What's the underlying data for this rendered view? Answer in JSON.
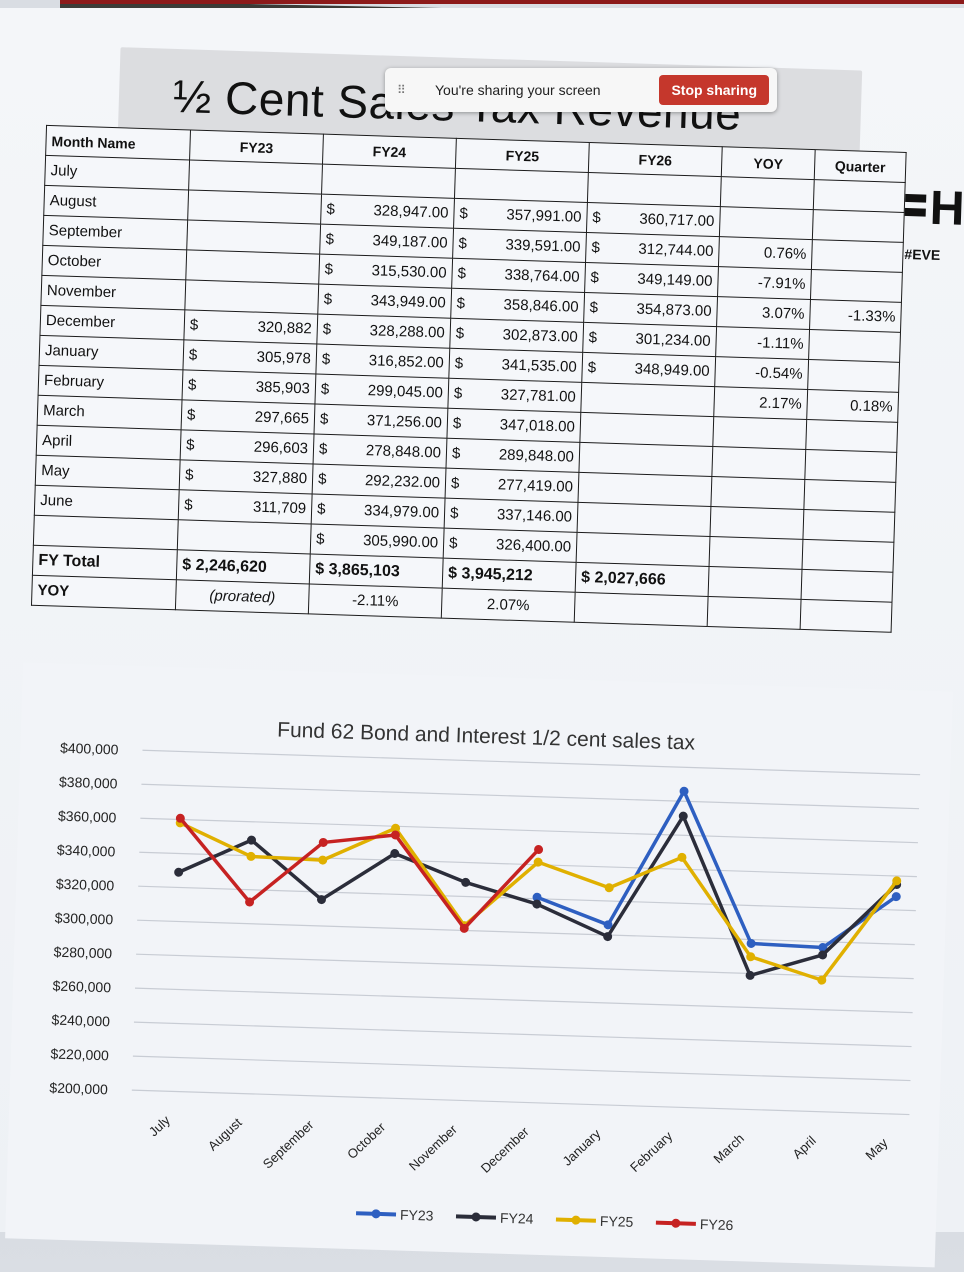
{
  "share_bar": {
    "message": "You're sharing your screen",
    "stop_label": "Stop sharing"
  },
  "slide": {
    "title": "½ Cent Sales Tax Revenue",
    "logo_letter": "H",
    "hashtag": "#EVE"
  },
  "table": {
    "headers": [
      "Month Name",
      "FY23",
      "FY24",
      "FY25",
      "FY26",
      "YOY",
      "Quarter"
    ],
    "rows": [
      {
        "month": "July",
        "fy23": "",
        "fy24": "",
        "fy25": "",
        "fy26": "",
        "yoy": "",
        "q": ""
      },
      {
        "month": "August",
        "fy23": "",
        "fy24": "328,947.00",
        "fy25": "357,991.00",
        "fy26": "360,717.00",
        "yoy": "",
        "q": ""
      },
      {
        "month": "September",
        "fy23": "",
        "fy24": "349,187.00",
        "fy25": "339,591.00",
        "fy26": "312,744.00",
        "yoy": "0.76%",
        "q": ""
      },
      {
        "month": "October",
        "fy23": "",
        "fy24": "315,530.00",
        "fy25": "338,764.00",
        "fy26": "349,149.00",
        "yoy": "-7.91%",
        "q": ""
      },
      {
        "month": "November",
        "fy23": "",
        "fy24": "343,949.00",
        "fy25": "358,846.00",
        "fy26": "354,873.00",
        "yoy": "3.07%",
        "q": "-1.33%"
      },
      {
        "month": "December",
        "fy23": "320,882",
        "fy24": "328,288.00",
        "fy25": "302,873.00",
        "fy26": "301,234.00",
        "yoy": "-1.11%",
        "q": ""
      },
      {
        "month": "January",
        "fy23": "305,978",
        "fy24": "316,852.00",
        "fy25": "341,535.00",
        "fy26": "348,949.00",
        "yoy": "-0.54%",
        "q": ""
      },
      {
        "month": "February",
        "fy23": "385,903",
        "fy24": "299,045.00",
        "fy25": "327,781.00",
        "fy26": "",
        "yoy": "2.17%",
        "q": "0.18%"
      },
      {
        "month": "March",
        "fy23": "297,665",
        "fy24": "371,256.00",
        "fy25": "347,018.00",
        "fy26": "",
        "yoy": "",
        "q": ""
      },
      {
        "month": "April",
        "fy23": "296,603",
        "fy24": "278,848.00",
        "fy25": "289,848.00",
        "fy26": "",
        "yoy": "",
        "q": ""
      },
      {
        "month": "May",
        "fy23": "327,880",
        "fy24": "292,232.00",
        "fy25": "277,419.00",
        "fy26": "",
        "yoy": "",
        "q": ""
      },
      {
        "month": "June",
        "fy23": "311,709",
        "fy24": "334,979.00",
        "fy25": "337,146.00",
        "fy26": "",
        "yoy": "",
        "q": ""
      },
      {
        "month": "",
        "fy23": "",
        "fy24": "305,990.00",
        "fy25": "326,400.00",
        "fy26": "",
        "yoy": "",
        "q": ""
      }
    ],
    "total": {
      "label": "FY Total",
      "fy23": "2,246,620",
      "fy24": "3,865,103",
      "fy25": "3,945,212",
      "fy26": "2,027,666"
    },
    "yoy_row": {
      "label": "YOY",
      "fy23": "(prorated)",
      "fy24": "-2.11%",
      "fy25": "2.07%"
    },
    "currency_symbol": "$"
  },
  "chart_data": {
    "type": "line",
    "title": "Fund 62 Bond and Interest 1/2 cent sales tax",
    "categories": [
      "July",
      "August",
      "September",
      "October",
      "November",
      "December",
      "January",
      "February",
      "March",
      "April",
      "May"
    ],
    "ylim": [
      200000,
      400000
    ],
    "yticks": [
      "$200,000",
      "$220,000",
      "$240,000",
      "$260,000",
      "$280,000",
      "$300,000",
      "$320,000",
      "$340,000",
      "$360,000",
      "$380,000",
      "$400,000"
    ],
    "ytick_values": [
      200000,
      220000,
      240000,
      260000,
      280000,
      300000,
      320000,
      340000,
      360000,
      380000,
      400000
    ],
    "grid": true,
    "legend_position": "bottom",
    "series": [
      {
        "name": "FY23",
        "color": "#2e5fc1",
        "values": [
          null,
          null,
          null,
          null,
          null,
          320882,
          305978,
          385903,
          297665,
          296603,
          327880
        ]
      },
      {
        "name": "FY24",
        "color": "#2b2d3a",
        "values": [
          328947,
          349187,
          315530,
          343949,
          328288,
          316852,
          299045,
          371256,
          278848,
          292232,
          334979
        ]
      },
      {
        "name": "FY25",
        "color": "#e0b000",
        "values": [
          357991,
          339591,
          338764,
          358846,
          302873,
          341535,
          327781,
          347018,
          289848,
          277419,
          337146
        ]
      },
      {
        "name": "FY26",
        "color": "#c62222",
        "values": [
          360717,
          312744,
          349149,
          354873,
          301234,
          348949,
          null,
          null,
          null,
          null,
          null
        ]
      }
    ]
  }
}
